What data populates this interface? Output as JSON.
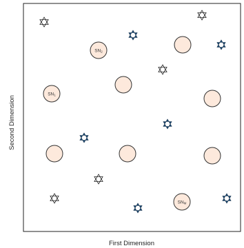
{
  "axes": {
    "x_label": "First Dimension",
    "y_label": "Second Dimension"
  },
  "colors": {
    "frame": "#222222",
    "circle_fill": "#fde9dc",
    "circle_stroke": "#333333",
    "star_filled": "#1f4e79",
    "star_hollow": "#ffffff",
    "star_stroke": "#222222"
  },
  "nodes": {
    "sn2_label": "SN2",
    "sn1_label": "SN1",
    "snm_label": "SNM"
  },
  "legend_items": {
    "circle": "circle-node-icon",
    "star_filled": "filled-star-icon",
    "star_hollow": "hollow-star-icon"
  }
}
